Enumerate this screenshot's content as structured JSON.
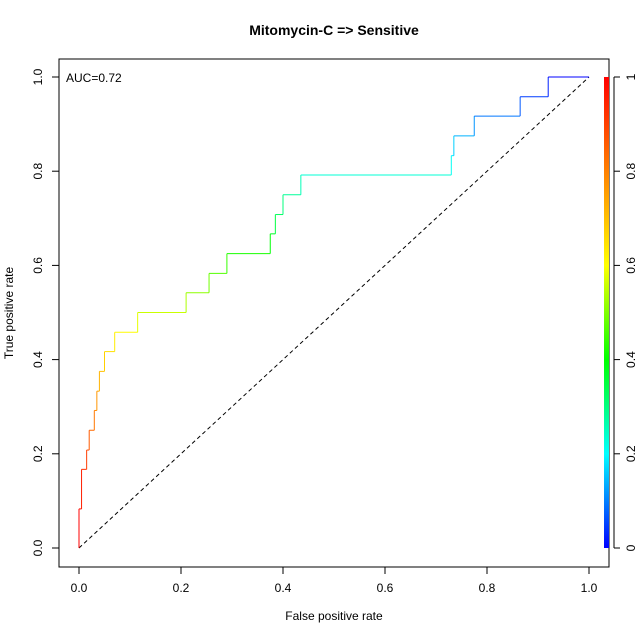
{
  "chart_data": {
    "type": "line",
    "title": "Mitomycin-C => Sensitive",
    "xlabel": "False positive rate",
    "ylabel": "True positive rate",
    "xlim": [
      0,
      1
    ],
    "ylim": [
      0,
      1
    ],
    "x_ticks": [
      "0.0",
      "0.2",
      "0.4",
      "0.6",
      "0.8",
      "1.0"
    ],
    "y_ticks": [
      "0.0",
      "0.2",
      "0.4",
      "0.6",
      "0.8",
      "1.0"
    ],
    "annotation": "AUC=0.72",
    "grid": false,
    "colorbar": {
      "ticks": [
        "0",
        "0.2",
        "0.4",
        "0.6",
        "0.8",
        "1"
      ],
      "range": [
        0,
        1
      ],
      "colormap": [
        "#0000ff",
        "#00ffff",
        "#00ff00",
        "#ffff00",
        "#ff8000",
        "#ff0000"
      ]
    },
    "diagonal": {
      "x": [
        0,
        1
      ],
      "y": [
        0,
        1
      ],
      "style": "dashed",
      "color": "#000000"
    },
    "series": [
      {
        "x": [
          0.0,
          0.0,
          0.005,
          0.005,
          0.015,
          0.015,
          0.02,
          0.02,
          0.03,
          0.03,
          0.035,
          0.035,
          0.04,
          0.04,
          0.05,
          0.05,
          0.07,
          0.07,
          0.115,
          0.115,
          0.21,
          0.21,
          0.255,
          0.255,
          0.29,
          0.29,
          0.375,
          0.375,
          0.385,
          0.385,
          0.4,
          0.4,
          0.435,
          0.435,
          0.73,
          0.73,
          0.735,
          0.735,
          0.775,
          0.775,
          0.865,
          0.865,
          0.92,
          0.92,
          1.0
        ],
        "y": [
          0.0,
          0.083,
          0.083,
          0.167,
          0.167,
          0.208,
          0.208,
          0.25,
          0.25,
          0.292,
          0.292,
          0.333,
          0.333,
          0.375,
          0.375,
          0.417,
          0.417,
          0.458,
          0.458,
          0.5,
          0.5,
          0.542,
          0.542,
          0.583,
          0.583,
          0.625,
          0.625,
          0.667,
          0.667,
          0.708,
          0.708,
          0.75,
          0.75,
          0.792,
          0.792,
          0.833,
          0.833,
          0.875,
          0.875,
          0.917,
          0.917,
          0.958,
          0.958,
          1.0,
          1.0
        ]
      }
    ]
  }
}
